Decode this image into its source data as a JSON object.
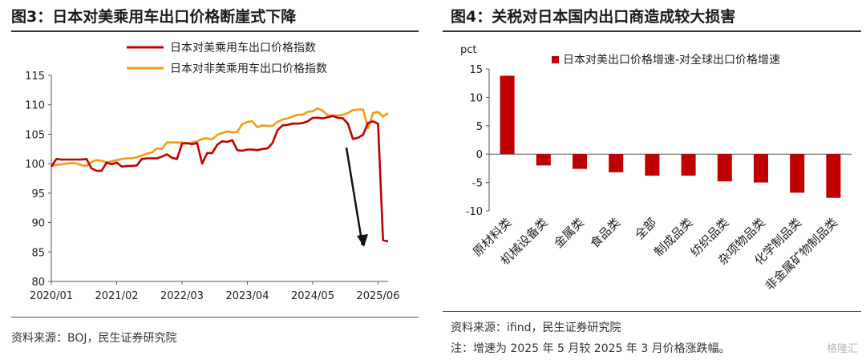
{
  "left": {
    "title": "图3：日本对美乘用车出口价格断崖式下降",
    "source": "资料来源：BOJ，民生证券研究院"
  },
  "right": {
    "title": "图4：关税对日本国内出口商造成较大损害",
    "source": "资料来源：ifind，民生证券研究院",
    "note": "注：增速为 2025 年 5 月较 2025 年 3 月价格涨跌幅。"
  },
  "watermark": "格隆汇",
  "chart_data": [
    {
      "type": "line",
      "title": "",
      "xlabel": "",
      "ylabel": "",
      "ylim": [
        80,
        115
      ],
      "yticks": [
        80,
        85,
        90,
        95,
        100,
        105,
        110,
        115
      ],
      "xtick_labels": [
        "2020/01",
        "2021/02",
        "2022/03",
        "2023/04",
        "2024/05",
        "2025/06"
      ],
      "x_start": "2020-01",
      "legend_position": "top",
      "grid": false,
      "annotation": "downward-arrow",
      "series": [
        {
          "name": "日本对美乘用车出口价格指数",
          "color": "#c00000",
          "values": [
            99.5,
            100.8,
            100.7,
            100.7,
            100.7,
            100.7,
            100.7,
            100.8,
            99.2,
            98.8,
            98.8,
            100.2,
            99.9,
            100.2,
            99.5,
            99.6,
            99.6,
            99.7,
            100.8,
            100.9,
            100.9,
            100.9,
            101.2,
            101.6,
            101.0,
            100.8,
            103.4,
            103.5,
            103.3,
            103.5,
            100.0,
            101.8,
            101.8,
            103.2,
            103.8,
            103.7,
            104.0,
            102.3,
            102.2,
            102.4,
            102.4,
            102.3,
            102.5,
            102.6,
            103.5,
            105.7,
            106.5,
            106.6,
            106.8,
            106.8,
            106.9,
            107.2,
            107.8,
            107.8,
            107.7,
            107.9,
            108.1,
            107.8,
            107.7,
            106.8,
            104.2,
            104.4,
            104.9,
            106.9,
            107.2,
            106.8,
            87.0,
            86.8
          ]
        },
        {
          "name": "日本对非美乘用车出口价格指数",
          "color": "#f39c12",
          "values": [
            99.6,
            99.8,
            99.9,
            100.0,
            100.1,
            100.0,
            99.8,
            99.6,
            100.3,
            100.6,
            100.5,
            100.2,
            100.4,
            100.6,
            100.8,
            100.9,
            100.9,
            101.1,
            101.4,
            101.7,
            101.9,
            102.6,
            102.5,
            103.6,
            103.6,
            103.6,
            103.6,
            103.4,
            103.6,
            103.8,
            104.2,
            104.3,
            104.1,
            104.9,
            105.2,
            105.5,
            105.3,
            105.4,
            106.7,
            107.1,
            107.2,
            106.2,
            106.5,
            106.4,
            106.4,
            107.1,
            107.5,
            107.7,
            108.0,
            108.3,
            108.3,
            108.8,
            108.9,
            109.4,
            109.0,
            108.2,
            108.2,
            108.2,
            108.3,
            108.6,
            109.1,
            109.2,
            109.2,
            106.0,
            108.6,
            108.8,
            108.0,
            108.6
          ]
        }
      ]
    },
    {
      "type": "bar",
      "title": "",
      "xlabel": "",
      "ylabel": "pct",
      "ylim": [
        -10,
        15
      ],
      "yticks": [
        -10,
        -5,
        0,
        5,
        10,
        15
      ],
      "legend_position": "top",
      "grid": false,
      "categories": [
        "原材料类",
        "机械设备类",
        "金属类",
        "食品类",
        "全部",
        "制成品类",
        "纺织品类",
        "杂项物品类",
        "化学制品类",
        "非金属矿物制品类"
      ],
      "series": [
        {
          "name": "日本对美出口价格增速-对全球出口价格增速",
          "color": "#c00000",
          "values": [
            13.8,
            -2.0,
            -2.6,
            -3.2,
            -3.8,
            -3.8,
            -4.8,
            -5.0,
            -6.8,
            -7.7
          ]
        }
      ]
    }
  ]
}
